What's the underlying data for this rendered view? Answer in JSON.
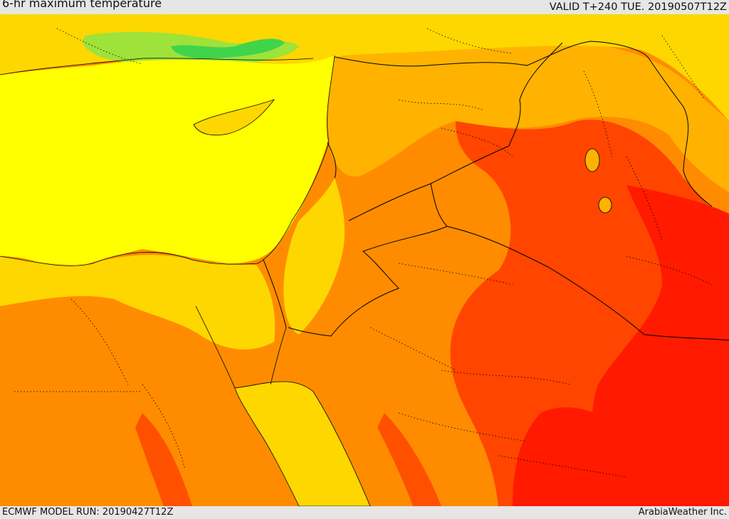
{
  "header": {
    "title": "6-hr maximum temperature",
    "valid": "VALID T+240 TUE. 20190507T12Z"
  },
  "footer": {
    "model_run": "ECMWF MODEL RUN: 20190427T12Z",
    "credit": "ArabiaWeather Inc."
  },
  "palette": {
    "green": "#3fd44a",
    "light_green": "#9fe23a",
    "yellow_green": "#d6f23a",
    "yellow": "#ffff00",
    "gold": "#ffd700",
    "orange_light": "#ffb300",
    "orange": "#ff8c00",
    "orange_dark": "#ff6a00",
    "red_orange": "#ff4500",
    "red": "#ff1a00"
  }
}
